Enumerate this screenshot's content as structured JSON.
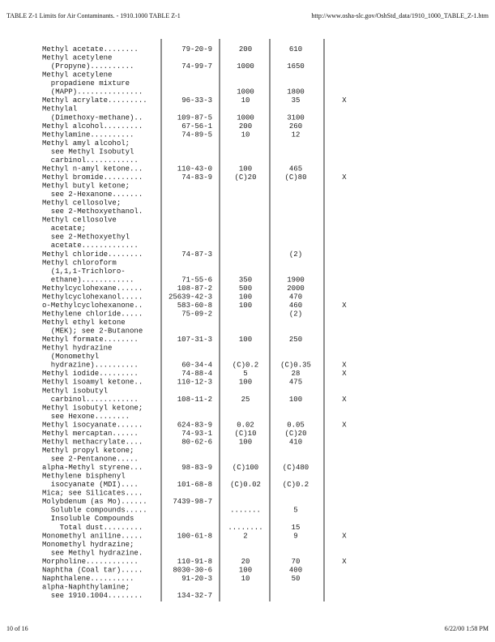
{
  "header": {
    "left": "TABLE Z-1 Limits for Air Contaminants. - 1910.1000 TABLE Z-1",
    "right": "http://www.osha-slc.gov/OshStd_data/1910_1000_TABLE_Z-1.htm"
  },
  "footer": {
    "left": "10 of 16",
    "right": "6/22/00 1:58 PM"
  },
  "table": {
    "lines": [
      {
        "name": "Methyl acetate........",
        "cas": "79-20-9",
        "ppm": "200",
        "mg": "610"
      },
      {
        "name": "Methyl acetylene"
      },
      {
        "name": "  (Propyne)..........",
        "cas": "74-99-7",
        "ppm": "1000",
        "mg": "1650"
      },
      {
        "name": "Methyl acetylene"
      },
      {
        "name": "  propadiene mixture"
      },
      {
        "name": "  (MAPP)...............",
        "ppm": "1000",
        "mg": "1800"
      },
      {
        "name": "Methyl acrylate.........",
        "cas": "96-33-3",
        "ppm": "10",
        "mg": "35",
        "skin": "X"
      },
      {
        "name": "Methylal"
      },
      {
        "name": "  (Dimethoxy-methane)..",
        "cas": "109-87-5",
        "ppm": "1000",
        "mg": "3100"
      },
      {
        "name": "Methyl alcohol.........",
        "cas": "67-56-1",
        "ppm": "200",
        "mg": "260"
      },
      {
        "name": "Methylamine..........",
        "cas": "74-89-5",
        "ppm": "10",
        "mg": "12"
      },
      {
        "name": "Methyl amyl alcohol;"
      },
      {
        "name": "  see Methyl Isobutyl"
      },
      {
        "name": "  carbinol............"
      },
      {
        "name": "Methyl n-amyl ketone...",
        "cas": "110-43-0",
        "ppm": "100",
        "mg": "465"
      },
      {
        "name": "Methyl bromide.........",
        "cas": "74-83-9",
        "ppm": "(C)20",
        "mg": "(C)80",
        "skin": "X"
      },
      {
        "name": "Methyl butyl ketone;"
      },
      {
        "name": "  see 2-Hexanone......."
      },
      {
        "name": "Methyl cellosolve;"
      },
      {
        "name": "  see 2-Methoxyethanol."
      },
      {
        "name": "Methyl cellosolve"
      },
      {
        "name": "  acetate;"
      },
      {
        "name": "  see 2-Methoxyethyl"
      },
      {
        "name": "  acetate............."
      },
      {
        "name": "Methyl chloride........",
        "cas": "74-87-3",
        "mg": "(2)"
      },
      {
        "name": "Methyl chloroform"
      },
      {
        "name": "  (1,1,1-Trichloro-"
      },
      {
        "name": "  ethane)............",
        "cas": "71-55-6",
        "ppm": "350",
        "mg": "1900"
      },
      {
        "name": "Methylcyclohexane......",
        "cas": "108-87-2",
        "ppm": "500",
        "mg": "2000"
      },
      {
        "name": "Methylcyclohexanol.....",
        "cas": "25639-42-3",
        "ppm": "100",
        "mg": "470"
      },
      {
        "name": "o-Methylcyclohexanone..",
        "cas": "583-60-8",
        "ppm": "100",
        "mg": "460",
        "skin": "X"
      },
      {
        "name": "Methylene chloride.....",
        "cas": "75-09-2",
        "mg": "(2)"
      },
      {
        "name": "Methyl ethyl ketone"
      },
      {
        "name": "  (MEK); see 2-Butanone"
      },
      {
        "name": "Methyl formate........",
        "cas": "107-31-3",
        "ppm": "100",
        "mg": "250"
      },
      {
        "name": "Methyl hydrazine"
      },
      {
        "name": "  (Monomethyl"
      },
      {
        "name": "  hydrazine)..........",
        "cas": "60-34-4",
        "ppm": "(C)0.2",
        "mg": "(C)0.35",
        "skin": "X"
      },
      {
        "name": "Methyl iodide.........",
        "cas": "74-88-4",
        "ppm": "5",
        "mg": "28",
        "skin": "X"
      },
      {
        "name": "Methyl isoamyl ketone..",
        "cas": "110-12-3",
        "ppm": "100",
        "mg": "475"
      },
      {
        "name": "Methyl isobutyl"
      },
      {
        "name": "  carbinol............",
        "cas": "108-11-2",
        "ppm": "25",
        "mg": "100",
        "skin": "X"
      },
      {
        "name": "Methyl isobutyl ketone;"
      },
      {
        "name": "  see Hexone........"
      },
      {
        "name": "Methyl isocyanate......",
        "cas": "624-83-9",
        "ppm": "0.02",
        "mg": "0.05",
        "skin": "X"
      },
      {
        "name": "Methyl mercaptan......",
        "cas": "74-93-1",
        "ppm": "(C)10",
        "mg": "(C)20"
      },
      {
        "name": "Methyl methacrylate....",
        "cas": "80-62-6",
        "ppm": "100",
        "mg": "410"
      },
      {
        "name": "Methyl propyl ketone;"
      },
      {
        "name": "  see 2-Pentanone....."
      },
      {
        "name": "alpha-Methyl styrene...",
        "cas": "98-83-9",
        "ppm": "(C)100",
        "mg": "(C)480"
      },
      {
        "name": "Methylene bisphenyl"
      },
      {
        "name": "  isocyanate (MDI)....",
        "cas": "101-68-8",
        "ppm": "(C)0.02",
        "mg": "(C)0.2"
      },
      {
        "name": "Mica; see Silicates...."
      },
      {
        "name": "Molybdenum (as Mo)......",
        "cas": "7439-98-7"
      },
      {
        "name": "  Soluble compounds.....",
        "ppm": ".......",
        "mg": "5"
      },
      {
        "name": "  Insoluble Compounds"
      },
      {
        "name": "    Total dust.........",
        "ppm": "........",
        "mg": "15"
      },
      {
        "name": "Monomethyl aniline.....",
        "cas": "100-61-8",
        "ppm": "2",
        "mg": "9",
        "skin": "X"
      },
      {
        "name": "Monomethyl hydrazine;"
      },
      {
        "name": "  see Methyl hydrazine."
      },
      {
        "name": "Morpholine............",
        "cas": "110-91-8",
        "ppm": "20",
        "mg": "70",
        "skin": "X"
      },
      {
        "name": "Naphtha (Coal tar).....",
        "cas": "8030-30-6",
        "ppm": "100",
        "mg": "400"
      },
      {
        "name": "Naphthalene..........",
        "cas": "91-20-3",
        "ppm": "10",
        "mg": "50"
      },
      {
        "name": "alpha-Naphthylamine;"
      },
      {
        "name": "  see 1910.1004........",
        "cas": "134-32-7"
      }
    ]
  }
}
